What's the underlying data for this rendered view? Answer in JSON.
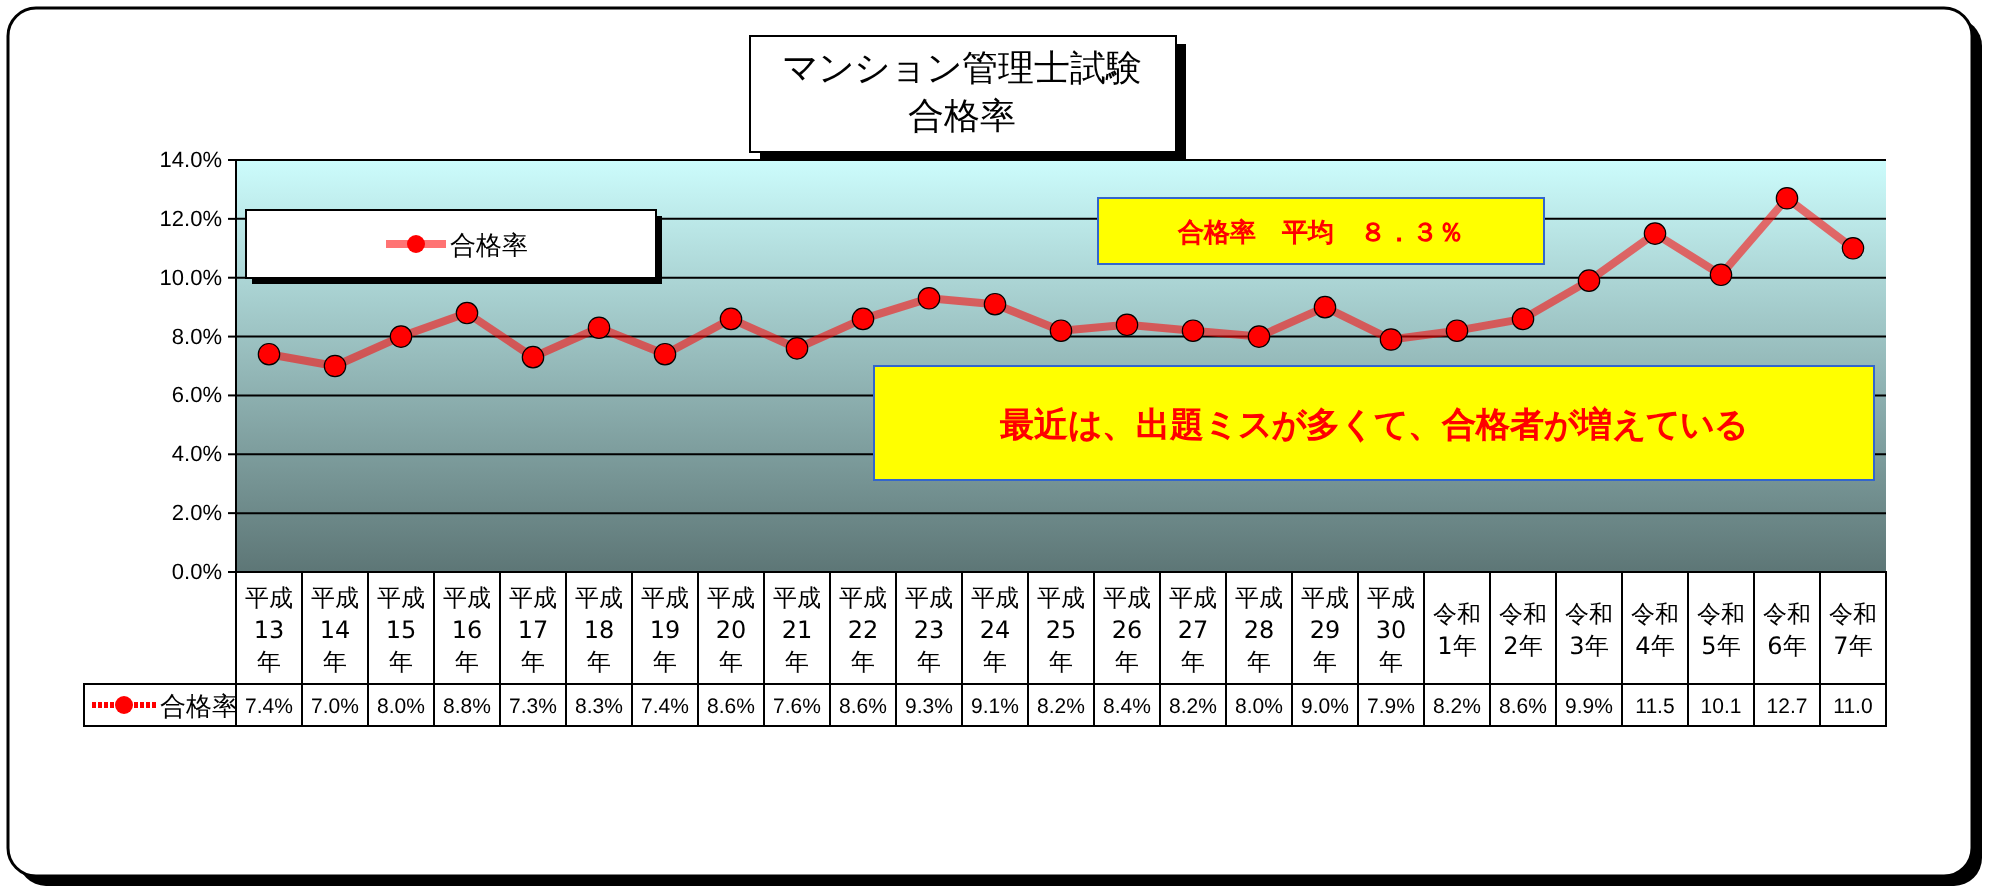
{
  "chart_data": {
    "type": "line",
    "title": "マンション管理士試験合格率",
    "categories": [
      "平成13年",
      "平成14年",
      "平成15年",
      "平成16年",
      "平成17年",
      "平成18年",
      "平成19年",
      "平成20年",
      "平成21年",
      "平成22年",
      "平成23年",
      "平成24年",
      "平成25年",
      "平成26年",
      "平成27年",
      "平成28年",
      "平成29年",
      "平成30年",
      "令和1年",
      "令和2年",
      "令和3年",
      "令和4年",
      "令和5年",
      "令和6年",
      "令和7年"
    ],
    "series": [
      {
        "name": "合格率",
        "color": "#ff0000",
        "values": [
          7.4,
          7.0,
          8.0,
          8.8,
          7.3,
          8.3,
          7.4,
          8.6,
          7.6,
          8.6,
          9.3,
          9.1,
          8.2,
          8.4,
          8.2,
          8.0,
          9.0,
          7.9,
          8.2,
          8.6,
          9.9,
          11.5,
          10.1,
          12.7,
          11.0
        ],
        "value_labels": [
          "7.4%",
          "7.0%",
          "8.0%",
          "8.8%",
          "7.3%",
          "8.3%",
          "7.4%",
          "8.6%",
          "7.6%",
          "8.6%",
          "9.3%",
          "9.1%",
          "8.2%",
          "8.4%",
          "8.2%",
          "8.0%",
          "9.0%",
          "7.9%",
          "8.2%",
          "8.6%",
          "9.9%",
          "11.5",
          "10.1",
          "12.7",
          "11.0"
        ]
      }
    ],
    "ylim": [
      0,
      14
    ],
    "yticks": [
      {
        "value": 0,
        "label": "0.0%"
      },
      {
        "value": 2,
        "label": "2.0%"
      },
      {
        "value": 4,
        "label": "4.0%"
      },
      {
        "value": 6,
        "label": "6.0%"
      },
      {
        "value": 8,
        "label": "8.0%"
      },
      {
        "value": 10,
        "label": "10.0%"
      },
      {
        "value": 12,
        "label": "12.0%"
      },
      {
        "value": 14,
        "label": "14.0%"
      }
    ],
    "grid": "y",
    "legend": "top left",
    "marker": "circle",
    "annotations": [
      "合格率　平均　８．３％",
      "最近は、出題ミスが多くて、合格者が増えている"
    ]
  }
}
